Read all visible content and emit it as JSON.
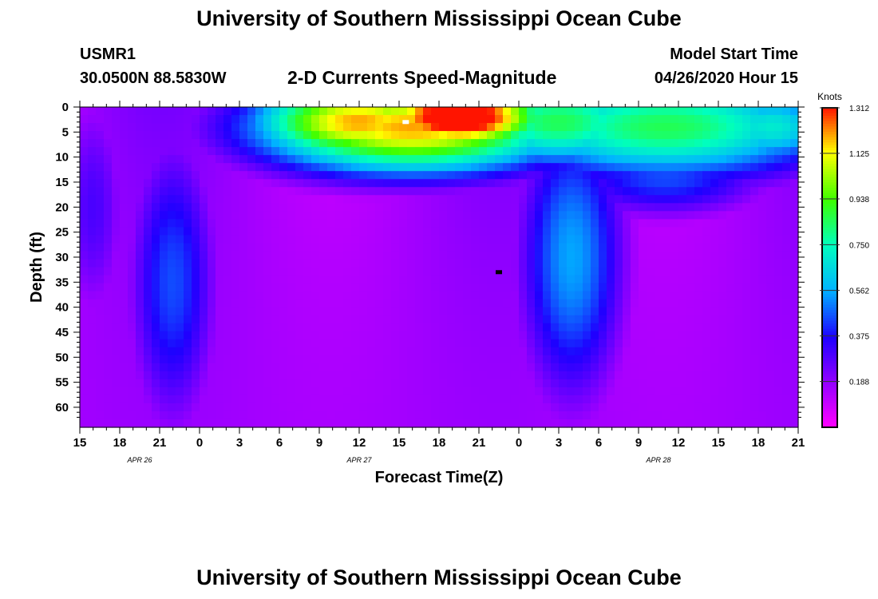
{
  "header": {
    "title": "University of Southern Mississippi Ocean Cube",
    "station_id": "USMR1",
    "coords": "30.0500N 88.5830W",
    "subtitle": "2-D Currents Speed-Magnitude",
    "model_start_label": "Model Start Time",
    "model_start_value": "04/26/2020 Hour 15"
  },
  "footer": {
    "title": "University of Southern Mississippi Ocean Cube"
  },
  "chart_data": {
    "type": "heatmap",
    "xlabel": "Forecast Time(Z)",
    "ylabel": "Depth (ft)",
    "x_tick_labels": [
      "15",
      "18",
      "21",
      "0",
      "3",
      "6",
      "9",
      "12",
      "15",
      "18",
      "21",
      "0",
      "3",
      "6",
      "9",
      "12",
      "15",
      "18",
      "21"
    ],
    "date_labels": [
      {
        "label": "APR 26",
        "tick_index": 1.5
      },
      {
        "label": "APR 27",
        "tick_index": 7
      },
      {
        "label": "APR 28",
        "tick_index": 14.5
      }
    ],
    "xlim_hours": [
      0,
      54
    ],
    "y_ticks": [
      0,
      5,
      10,
      15,
      20,
      25,
      30,
      35,
      40,
      45,
      50,
      55,
      60
    ],
    "ylim": [
      0,
      64
    ],
    "colorbar": {
      "label": "Knots",
      "ticks": [
        "1.312",
        "1.125",
        "0.938",
        "0.750",
        "0.562",
        "0.375",
        "0.188"
      ],
      "tick_values": [
        1.312,
        1.125,
        0.938,
        0.75,
        0.562,
        0.375,
        0.188
      ],
      "range": [
        0,
        1.312
      ]
    },
    "speed_features": [
      {
        "hour": 21,
        "depth": 3,
        "value": 0.95,
        "sx": 6,
        "sd": 6
      },
      {
        "hour": 28.5,
        "depth": 2,
        "value": 1.25,
        "sx": 5,
        "sd": 5
      },
      {
        "hour": 25,
        "depth": 4,
        "value": 0.95,
        "sx": 9,
        "sd": 7
      },
      {
        "hour": 36,
        "depth": 3,
        "value": 0.6,
        "sx": 6,
        "sd": 7
      },
      {
        "hour": 44,
        "depth": 4,
        "value": 0.6,
        "sx": 10,
        "sd": 8
      },
      {
        "hour": 52,
        "depth": 4,
        "value": 0.45,
        "sx": 4,
        "sd": 6
      }
    ],
    "markers": [
      {
        "hour": 24.5,
        "depth": 3,
        "color": "#ffffff"
      },
      {
        "hour": 31.5,
        "depth": 33,
        "color": "#000000"
      }
    ]
  }
}
